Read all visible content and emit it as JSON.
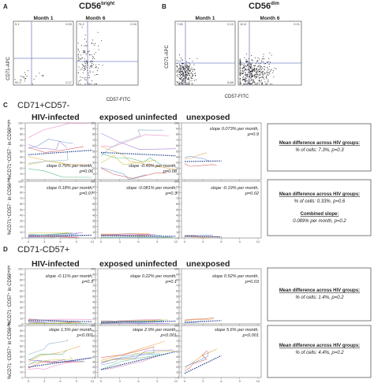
{
  "panelA": {
    "letter": "A",
    "title_main": "CD56",
    "title_sup": "bright",
    "ylabel": "CD71-APC",
    "xlabel": "CD57-FITC",
    "plots": [
      {
        "label": "Month 1",
        "quadrants": [
          "5.1",
          "0.53",
          "92.2",
          "2.17"
        ]
      },
      {
        "label": "Month 6",
        "quadrants": [
          "74.2",
          "0.34",
          "",
          ""
        ]
      }
    ]
  },
  "panelB": {
    "letter": "B",
    "title_main": "CD56",
    "title_sup": "dim",
    "ylabel": "CD71-APC",
    "xlabel": "CD57-FITC",
    "plots": [
      {
        "label": "Month 1",
        "quadrants": [
          "7.83",
          "0.12",
          "83.2",
          "8.89"
        ]
      },
      {
        "label": "Month 6",
        "quadrants": [
          "12.8",
          "0.21",
          "",
          ""
        ]
      }
    ]
  },
  "panelC": {
    "letter": "C",
    "title": "CD71+CD57-",
    "groups": [
      "HIV-infected",
      "exposed uninfected",
      "unexposed"
    ],
    "rows": [
      {
        "ylabel": "%CD71⁺CD57⁻ in CD56ᵇʳⁱᵍʰᵗ",
        "slopes": [
          {
            "l1": "slope 0.70% per month,",
            "l2": "p=0.06"
          },
          {
            "l1": "slope -0.49% per month,",
            "l2": "p=0.08"
          },
          {
            "l1": "slope 0.073% per month,",
            "l2": "p=0.9"
          }
        ]
      },
      {
        "ylabel": "%CD71⁺CD57⁻ in CD56ᵈⁱᵐ",
        "slopes": [
          {
            "l1": "slope 0.18% per month,",
            "l2": "p=0.07"
          },
          {
            "l1": "slope -0.081% per month,",
            "l2": "p=0.3"
          },
          {
            "l1": "slope -0.19% per month,",
            "l2": "p=0.02"
          }
        ]
      }
    ],
    "boxes": [
      {
        "title": "Mean difference across HIV groups:",
        "value": "% of cells: 7.3%, p=0.3"
      },
      {
        "title": "Mean difference across HIV groups:",
        "value": "% of cells: 0.33%, p=0.6",
        "title2": "Combined slope:",
        "value2": "0.089% per month, p=0.2"
      }
    ]
  },
  "panelD": {
    "letter": "D",
    "title": "CD71-CD57+",
    "groups": [
      "HIV-infected",
      "exposed uninfected",
      "unexposed"
    ],
    "rows": [
      {
        "ylabel": "%CD71⁻CD57⁺ in CD56ᵇʳⁱᵍʰᵗ",
        "slopes": [
          {
            "l1": "slope -0.11% per month,",
            "l2": "p=0.3"
          },
          {
            "l1": "slope 0.22% per month,",
            "l2": "p=0.1"
          },
          {
            "l1": "slope 0.52% per month,",
            "l2": "p=0.03"
          }
        ]
      },
      {
        "ylabel": "%CD71⁻CD57⁺ in CD56ᵈⁱᵐ",
        "slopes": [
          {
            "l1": "slope 1.5% per month,",
            "l2": "p<0.001"
          },
          {
            "l1": "slope 2.9% per month,",
            "l2": "p<0.001"
          },
          {
            "l1": "slope 5.6% per month,",
            "l2": "p<0.001"
          }
        ]
      }
    ],
    "boxes": [
      {
        "title": "Mean difference across HIV groups:",
        "value": "% of cells: 1.4%, p=0.2"
      },
      {
        "title": "Mean difference across HIV groups:",
        "value": "% of cells: 4.4%, p=0.2"
      }
    ]
  },
  "chart_data": [
    {
      "type": "line",
      "panel": "C",
      "row": 1,
      "group": "HIV-infected",
      "x": [
        0,
        12
      ],
      "trend": [
        44,
        52
      ],
      "ylim": [
        0,
        100
      ],
      "xticks": [
        0,
        3,
        6,
        9,
        12
      ]
    },
    {
      "type": "line",
      "panel": "C",
      "row": 1,
      "group": "exposed uninfected",
      "x": [
        0,
        12
      ],
      "trend": [
        48,
        42
      ],
      "ylim": [
        0,
        100
      ],
      "xticks": [
        0,
        3,
        6,
        9,
        12
      ]
    },
    {
      "type": "line",
      "panel": "C",
      "row": 1,
      "group": "unexposed",
      "x": [
        0,
        6
      ],
      "trend": [
        32,
        33
      ],
      "ylim": [
        0,
        100
      ],
      "xticks": [
        0,
        3,
        6,
        9,
        12
      ]
    },
    {
      "type": "line",
      "panel": "C",
      "row": 2,
      "group": "HIV-infected",
      "x": [
        0,
        12
      ],
      "trend": [
        3,
        5
      ],
      "ylim": [
        0,
        100
      ],
      "xticks": [
        0,
        3,
        6,
        9,
        12
      ]
    },
    {
      "type": "line",
      "panel": "C",
      "row": 2,
      "group": "exposed uninfected",
      "x": [
        0,
        12
      ],
      "trend": [
        4,
        3
      ],
      "ylim": [
        0,
        100
      ],
      "xticks": [
        0,
        3,
        6,
        9,
        12
      ]
    },
    {
      "type": "line",
      "panel": "C",
      "row": 2,
      "group": "unexposed",
      "x": [
        0,
        6
      ],
      "trend": [
        3,
        2
      ],
      "ylim": [
        0,
        100
      ],
      "xticks": [
        0,
        3,
        6,
        9,
        12
      ]
    },
    {
      "type": "line",
      "panel": "D",
      "row": 1,
      "group": "HIV-infected",
      "x": [
        0,
        12
      ],
      "trend": [
        6,
        4
      ],
      "ylim": [
        0,
        100
      ],
      "xticks": [
        0,
        3,
        6,
        9,
        12
      ]
    },
    {
      "type": "line",
      "panel": "D",
      "row": 1,
      "group": "exposed uninfected",
      "x": [
        0,
        12
      ],
      "trend": [
        3,
        5
      ],
      "ylim": [
        0,
        100
      ],
      "xticks": [
        0,
        3,
        6,
        9,
        12
      ]
    },
    {
      "type": "line",
      "panel": "D",
      "row": 1,
      "group": "unexposed",
      "x": [
        0,
        6
      ],
      "trend": [
        3,
        6
      ],
      "ylim": [
        0,
        100
      ],
      "xticks": [
        0,
        3,
        6,
        9,
        12
      ]
    },
    {
      "type": "line",
      "panel": "D",
      "row": 2,
      "group": "HIV-infected",
      "x": [
        0,
        12
      ],
      "trend": [
        20,
        38
      ],
      "ylim": [
        0,
        100
      ],
      "xticks": [
        0,
        3,
        6,
        9,
        12
      ]
    },
    {
      "type": "line",
      "panel": "D",
      "row": 2,
      "group": "exposed uninfected",
      "x": [
        0,
        12
      ],
      "trend": [
        15,
        50
      ],
      "ylim": [
        0,
        100
      ],
      "xticks": [
        0,
        3,
        6,
        9,
        12
      ]
    },
    {
      "type": "line",
      "panel": "D",
      "row": 2,
      "group": "unexposed",
      "x": [
        0,
        6
      ],
      "trend": [
        8,
        42
      ],
      "ylim": [
        0,
        100
      ],
      "xticks": [
        0,
        3,
        6,
        9,
        12
      ]
    }
  ]
}
